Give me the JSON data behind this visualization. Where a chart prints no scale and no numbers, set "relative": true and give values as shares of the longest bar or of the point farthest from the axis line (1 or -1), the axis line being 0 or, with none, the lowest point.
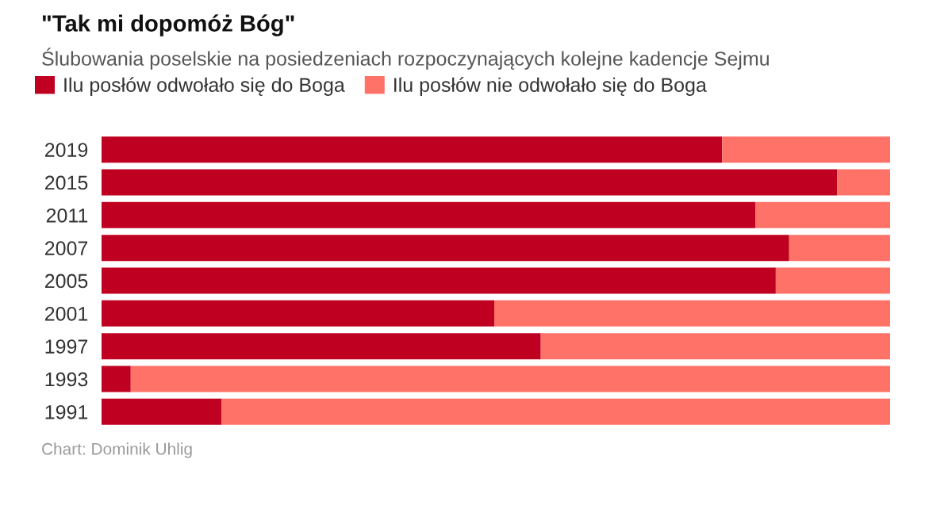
{
  "chart_data": {
    "type": "bar",
    "orientation": "horizontal",
    "stacked": true,
    "relative": true,
    "title": "\"Tak mi dopomóż Bóg\"",
    "subtitle": "Ślubowania poselskie na posiedzeniach rozpoczynających kolejne kadencje Sejmu",
    "categories": [
      "2019",
      "2015",
      "2011",
      "2007",
      "2005",
      "2001",
      "1997",
      "1993",
      "1991"
    ],
    "series": [
      {
        "name": "Ilu posłów odwołało się do Boga",
        "color": "#c00020",
        "values": [
          0.787,
          0.933,
          0.829,
          0.872,
          0.855,
          0.498,
          0.557,
          0.037,
          0.152
        ]
      },
      {
        "name": "Ilu posłów nie odwołało się do Boga",
        "color": "#ff7268",
        "values": [
          0.213,
          0.067,
          0.171,
          0.128,
          0.145,
          0.502,
          0.443,
          0.963,
          0.848
        ]
      }
    ],
    "legend": "top left",
    "grid": false,
    "annotations": [
      "Chart: Dominik Uhlig"
    ]
  }
}
